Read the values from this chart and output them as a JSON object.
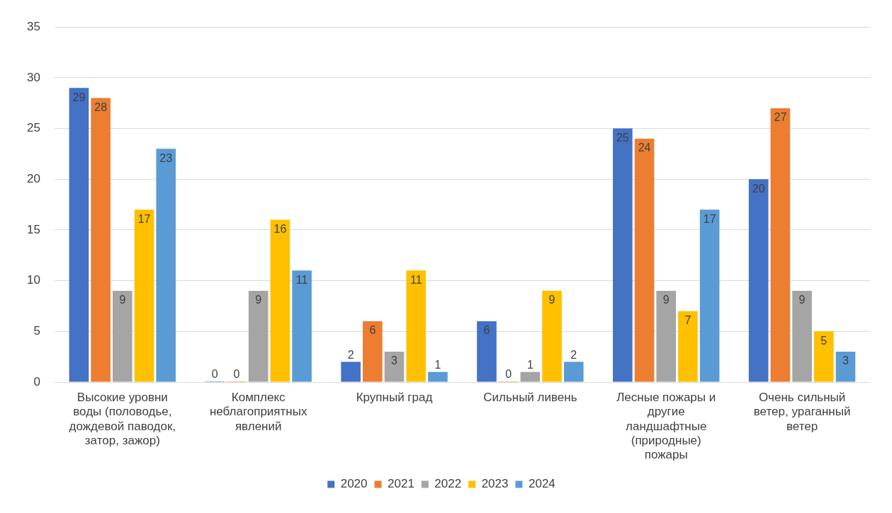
{
  "chart_data": {
    "type": "bar",
    "categories": [
      "Высокие уровни воды (половодье, дождевой паводок, затор, зажор)",
      "Комплекс неблагоприятных явлений",
      "Крупный град",
      "Сильный ливень",
      "Лесные пожары и другие ландшафтные (природные) пожары",
      "Очень сильный ветер, ураганный ветер"
    ],
    "series": [
      {
        "name": "2020",
        "color": "#4472c4",
        "values": [
          29,
          0,
          2,
          6,
          25,
          20
        ]
      },
      {
        "name": "2021",
        "color": "#ed7d31",
        "values": [
          28,
          0,
          6,
          0,
          24,
          27
        ]
      },
      {
        "name": "2022",
        "color": "#a5a5a5",
        "values": [
          9,
          9,
          3,
          1,
          9,
          9
        ]
      },
      {
        "name": "2023",
        "color": "#ffc000",
        "values": [
          17,
          16,
          11,
          9,
          7,
          5
        ]
      },
      {
        "name": "2024",
        "color": "#5b9bd5",
        "values": [
          23,
          11,
          1,
          2,
          17,
          3
        ]
      }
    ],
    "ylim": [
      0,
      35
    ],
    "yticks": [
      0,
      5,
      10,
      15,
      20,
      25,
      30,
      35
    ],
    "grid": "y",
    "legend": "bottom",
    "data_labels": true
  }
}
